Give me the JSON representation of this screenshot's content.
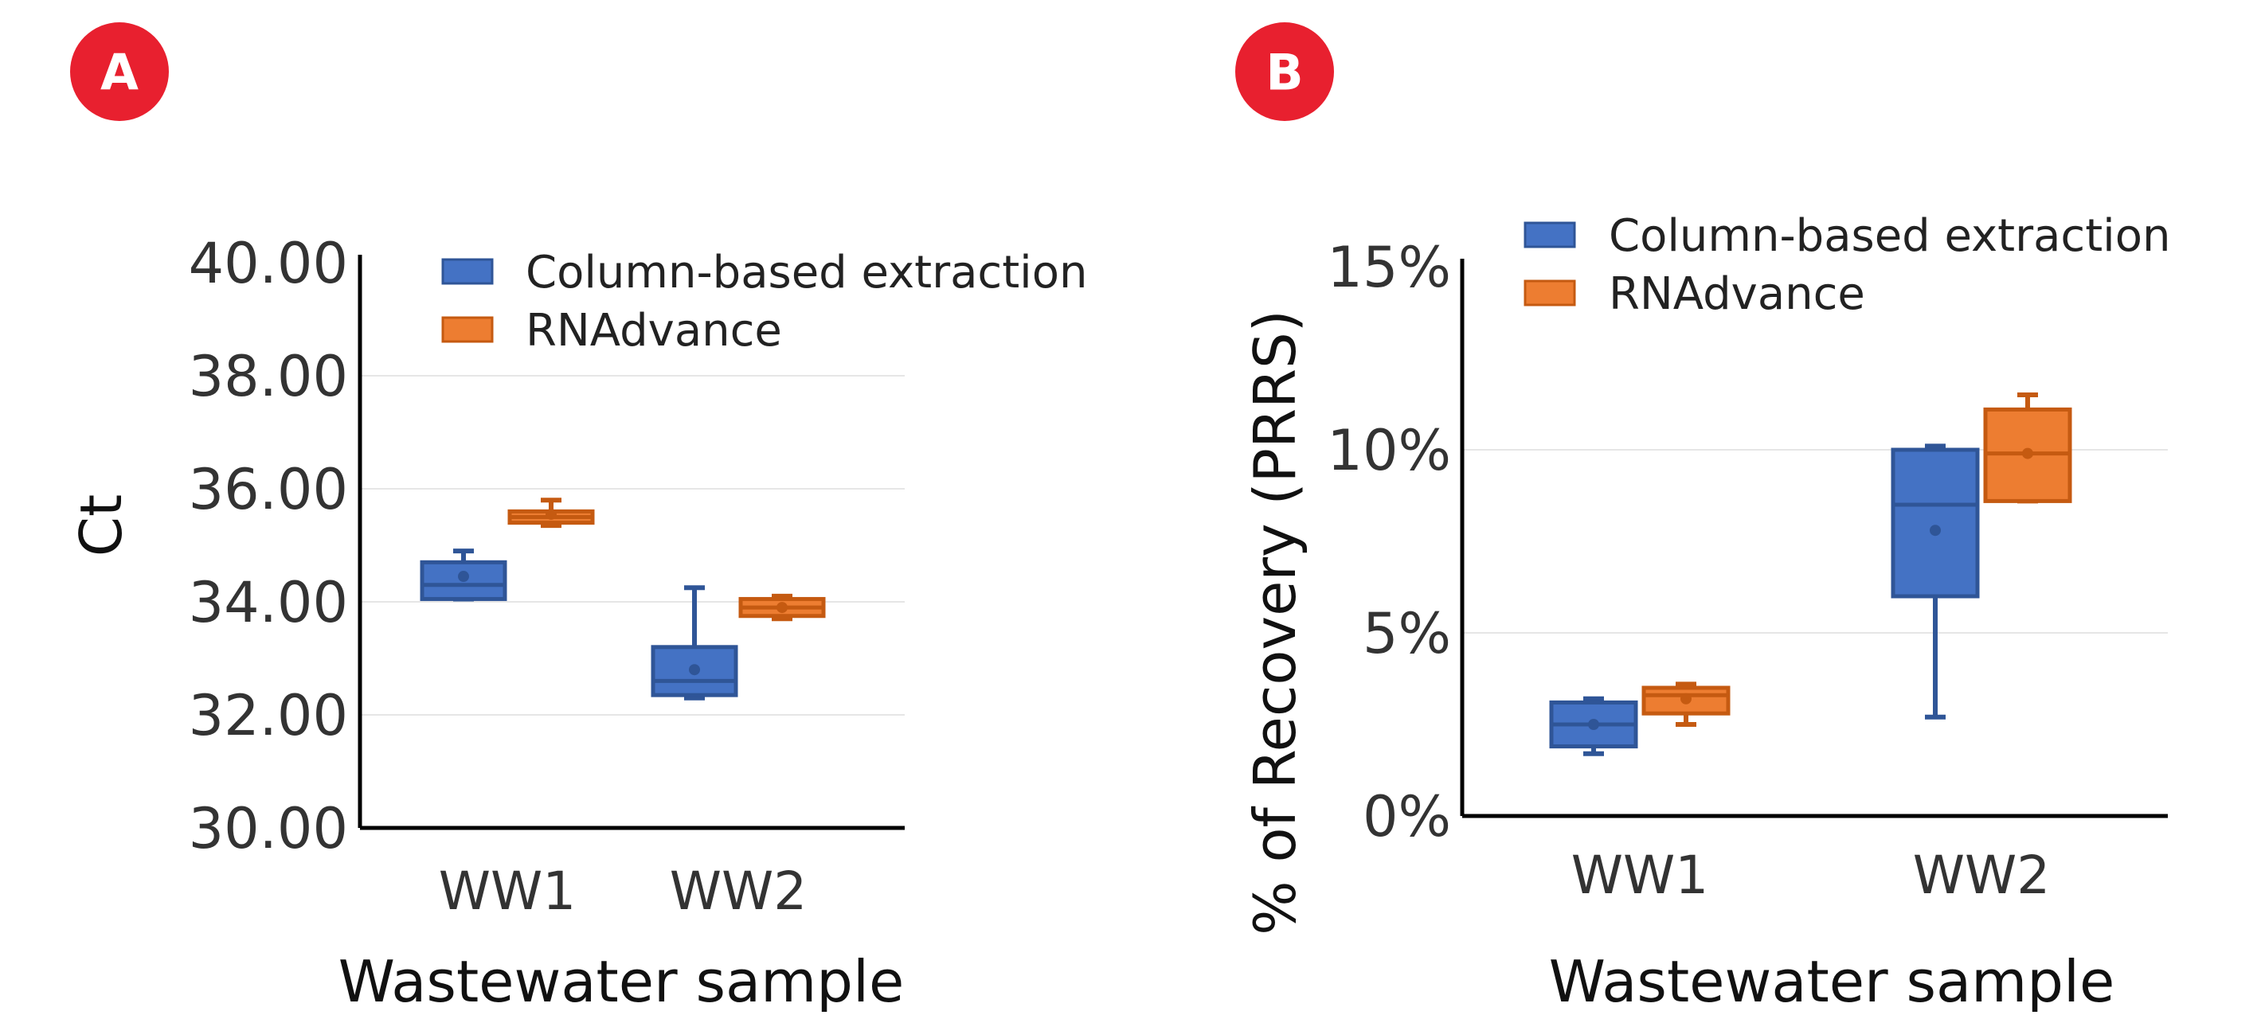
{
  "colors": {
    "column": "#4472C4",
    "column_stroke": "#2F5597",
    "rnadvance": "#ED7D31",
    "rnadvance_stroke": "#C55A11",
    "badge": "#E8202F",
    "grid": "#E6E6E6",
    "axis": "#000000",
    "text": "#333333"
  },
  "chart_data": [
    {
      "panel_label": "A",
      "type": "box",
      "title": "",
      "xlabel": "Wastewater sample",
      "ylabel": "Ct",
      "ylim": [
        30,
        40
      ],
      "yticks": [
        30,
        32,
        34,
        36,
        38,
        40
      ],
      "ytick_labels": [
        "30.00",
        "32.00",
        "34.00",
        "36.00",
        "38.00",
        "40.00"
      ],
      "grid": "horizontal",
      "legend_position": "top-right",
      "categories": [
        "WW1",
        "WW2"
      ],
      "series": [
        {
          "name": "Column-based extraction",
          "color_key": "column",
          "boxes": [
            {
              "min": 34.05,
              "q1": 34.05,
              "median": 34.3,
              "q3": 34.7,
              "max": 34.9,
              "mean": 34.45
            },
            {
              "min": 32.3,
              "q1": 32.35,
              "median": 32.6,
              "q3": 33.2,
              "max": 34.25,
              "mean": 32.8
            }
          ]
        },
        {
          "name": "RNAdvance",
          "color_key": "rnadvance",
          "boxes": [
            {
              "min": 35.35,
              "q1": 35.4,
              "median": 35.5,
              "q3": 35.6,
              "max": 35.8,
              "mean": 35.55
            },
            {
              "min": 33.7,
              "q1": 33.75,
              "median": 33.9,
              "q3": 34.05,
              "max": 34.1,
              "mean": 33.9
            }
          ]
        }
      ]
    },
    {
      "panel_label": "B",
      "type": "box",
      "title": "",
      "xlabel": "Wastewater sample",
      "ylabel": "% of Recovery (PRRS)",
      "ylim": [
        0,
        15
      ],
      "yticks": [
        0,
        5,
        10,
        15
      ],
      "ytick_labels": [
        "0%",
        "5%",
        "10%",
        "15%"
      ],
      "grid": "horizontal",
      "legend_position": "top-right",
      "categories": [
        "WW1",
        "WW2"
      ],
      "series": [
        {
          "name": "Column-based extraction",
          "color_key": "column",
          "boxes": [
            {
              "min": 1.7,
              "q1": 1.9,
              "median": 2.5,
              "q3": 3.1,
              "max": 3.2,
              "mean": 2.5
            },
            {
              "min": 2.7,
              "q1": 6.0,
              "median": 8.5,
              "q3": 10.0,
              "max": 10.1,
              "mean": 7.8
            }
          ]
        },
        {
          "name": "RNAdvance",
          "color_key": "rnadvance",
          "boxes": [
            {
              "min": 2.5,
              "q1": 2.8,
              "median": 3.3,
              "q3": 3.5,
              "max": 3.6,
              "mean": 3.2
            },
            {
              "min": 8.6,
              "q1": 8.6,
              "median": 9.9,
              "q3": 11.1,
              "max": 11.5,
              "mean": 9.9
            }
          ]
        }
      ]
    }
  ]
}
